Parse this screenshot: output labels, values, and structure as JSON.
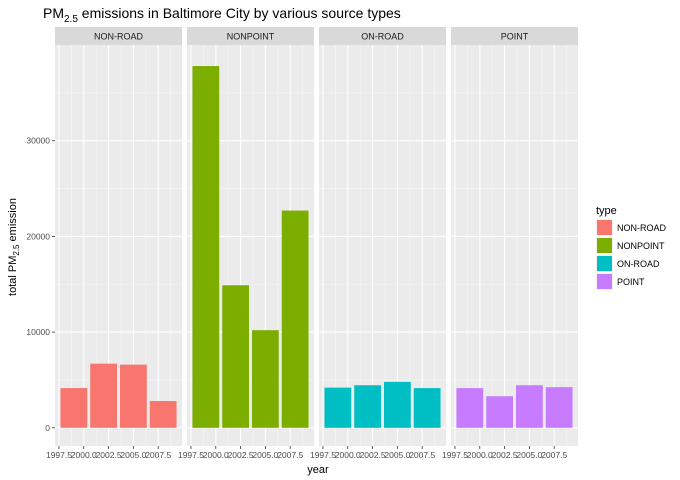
{
  "chart_data": {
    "type": "bar",
    "title": {
      "main": "PM",
      "sub": "2.5",
      "rest": " emissions in Baltimore City by various source types"
    },
    "ylabel": {
      "main": "total PM",
      "sub": "2.5",
      "rest": " emission"
    },
    "xlabel": "year",
    "x": [
      1999,
      2002,
      2005,
      2008
    ],
    "xlim": [
      1997.1,
      2009.9
    ],
    "x_ticks": [
      1997.5,
      2000.0,
      2002.5,
      2005.0,
      2007.5
    ],
    "x_tick_labels": [
      "1997.5",
      "2000.0",
      "2002.5",
      "2005.0",
      "2007.5"
    ],
    "ylim": [
      -1900,
      40000
    ],
    "y_ticks": [
      0,
      10000,
      20000,
      30000
    ],
    "y_tick_labels": [
      "0",
      "10000",
      "20000",
      "30000"
    ],
    "grid": true,
    "legend_position": "right",
    "legend_title": "type",
    "facets": [
      {
        "label": "NON-ROAD",
        "color": "#F8766D",
        "values": [
          4150,
          6700,
          6600,
          2800
        ]
      },
      {
        "label": "NONPOINT",
        "color": "#7CAE00",
        "values": [
          37800,
          14900,
          10200,
          22700
        ]
      },
      {
        "label": "ON-ROAD",
        "color": "#00BFC4",
        "values": [
          4200,
          4450,
          4800,
          4150
        ]
      },
      {
        "label": "POINT",
        "color": "#C77CFF",
        "values": [
          4150,
          3300,
          4450,
          4250
        ]
      }
    ]
  }
}
